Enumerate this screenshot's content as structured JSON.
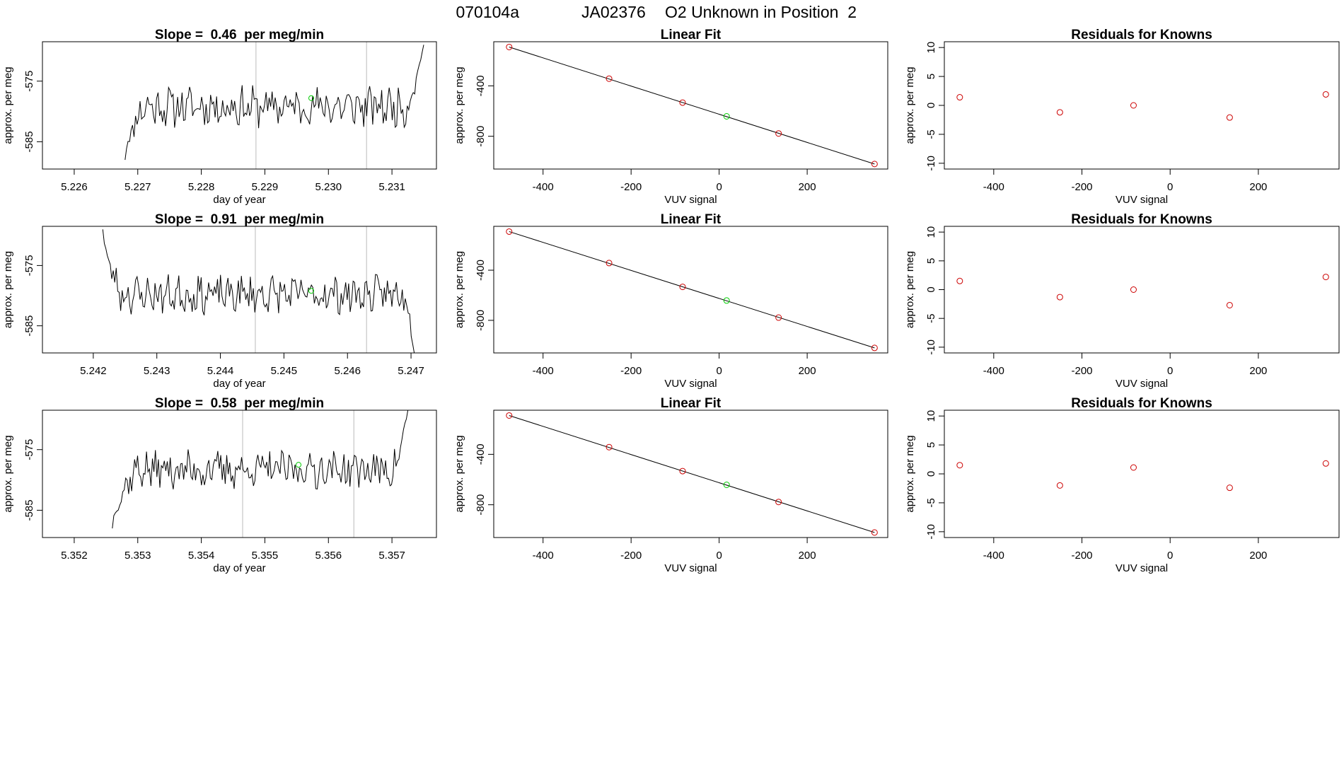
{
  "figure": {
    "title_parts": [
      "070104a",
      "JA02376",
      "O2 Unknown in Position  2"
    ]
  },
  "colors": {
    "known": "#cc0000",
    "unknown": "#00cc00",
    "line": "#000000",
    "vline": "#bbbbbb"
  },
  "chart_data": [
    {
      "type": "line",
      "row": 0,
      "title": "Slope =  0.46  per meg/min",
      "xlabel": "day of year",
      "ylabel": "approx. per meg",
      "xlim": [
        5.2255,
        5.2317
      ],
      "ylim": [
        -589.5,
        -568.5
      ],
      "xticks": [
        5.226,
        5.227,
        5.228,
        5.229,
        5.23,
        5.231
      ],
      "xtick_labels": [
        "5.226",
        "5.227",
        "5.228",
        "5.229",
        "5.230",
        "5.231"
      ],
      "yticks": [
        -585,
        -575
      ],
      "ytick_labels": [
        "-585",
        "-575"
      ],
      "vlines": [
        5.22886,
        5.2306
      ],
      "unknown_point": {
        "x": 5.22973,
        "y": -577.8
      },
      "series": {
        "x_start": 5.2268,
        "x_end": 5.2315,
        "n": 200,
        "mean": -579.2,
        "noise": 1.7,
        "seed": 11,
        "rise_start": -588,
        "rise_len": 0.06,
        "end_y": -569,
        "end_len": 0.06
      }
    },
    {
      "type": "scatter",
      "row": 0,
      "title": "Linear Fit",
      "xlabel": "VUV signal",
      "ylabel": "approx. per meg",
      "xlim": [
        -512,
        383
      ],
      "ylim": [
        -1060,
        -50
      ],
      "xticks": [
        -400,
        -200,
        0,
        200
      ],
      "xtick_labels": [
        "-400",
        "-200",
        "0",
        "200"
      ],
      "yticks": [
        -800,
        -400
      ],
      "ytick_labels": [
        "-800",
        "-400"
      ],
      "knowns": {
        "x": [
          -477,
          -250,
          -83,
          135,
          353
        ],
        "y": [
          -92,
          -343,
          -533,
          -778,
          -1020
        ]
      },
      "unknown": {
        "x": 17,
        "y": -642
      },
      "fit_line": {
        "x": [
          -477,
          353
        ],
        "y": [
          -92,
          -1020
        ]
      }
    },
    {
      "type": "scatter",
      "row": 0,
      "title": "Residuals for Knowns",
      "xlabel": "VUV signal",
      "ylabel": "approx. per meg",
      "xlim": [
        -512,
        383
      ],
      "ylim": [
        -11,
        11
      ],
      "xticks": [
        -400,
        -200,
        0,
        200
      ],
      "xtick_labels": [
        "-400",
        "-200",
        "0",
        "200"
      ],
      "yticks": [
        -10,
        -5,
        0,
        5,
        10
      ],
      "ytick_labels": [
        "-10",
        "-5",
        "0",
        "5",
        "10"
      ],
      "points": {
        "x": [
          -477,
          -250,
          -83,
          135,
          353
        ],
        "y": [
          1.4,
          -1.2,
          0.0,
          -2.1,
          1.9
        ]
      }
    },
    {
      "type": "line",
      "row": 1,
      "title": "Slope =  0.91  per meg/min",
      "xlabel": "day of year",
      "ylabel": "approx. per meg",
      "xlim": [
        5.2412,
        5.2474
      ],
      "ylim": [
        -589.5,
        -568.5
      ],
      "xticks": [
        5.242,
        5.243,
        5.244,
        5.245,
        5.246,
        5.247
      ],
      "xtick_labels": [
        "5.242",
        "5.243",
        "5.244",
        "5.245",
        "5.246",
        "5.247"
      ],
      "yticks": [
        -585,
        -575
      ],
      "ytick_labels": [
        "-585",
        "-575"
      ],
      "vlines": [
        5.24455,
        5.2463
      ],
      "unknown_point": {
        "x": 5.24543,
        "y": -579.2
      },
      "series": {
        "x_start": 5.24215,
        "x_end": 5.24705,
        "n": 210,
        "mean": -579.8,
        "noise": 1.6,
        "seed": 23,
        "rise_start": -569,
        "rise_len": 0.06,
        "end_y": -589.5,
        "end_len": 0.03
      }
    },
    {
      "type": "scatter",
      "row": 1,
      "title": "Linear Fit",
      "xlabel": "VUV signal",
      "ylabel": "approx. per meg",
      "xlim": [
        -512,
        383
      ],
      "ylim": [
        -1060,
        -50
      ],
      "xticks": [
        -400,
        -200,
        0,
        200
      ],
      "xtick_labels": [
        "-400",
        "-200",
        "0",
        "200"
      ],
      "yticks": [
        -800,
        -400
      ],
      "ytick_labels": [
        "-800",
        "-400"
      ],
      "knowns": {
        "x": [
          -477,
          -250,
          -83,
          135,
          353
        ],
        "y": [
          -92,
          -343,
          -533,
          -778,
          -1020
        ]
      },
      "unknown": {
        "x": 17,
        "y": -642
      },
      "fit_line": {
        "x": [
          -477,
          353
        ],
        "y": [
          -92,
          -1020
        ]
      }
    },
    {
      "type": "scatter",
      "row": 1,
      "title": "Residuals for Knowns",
      "xlabel": "VUV signal",
      "ylabel": "approx. per meg",
      "xlim": [
        -512,
        383
      ],
      "ylim": [
        -11,
        11
      ],
      "xticks": [
        -400,
        -200,
        0,
        200
      ],
      "xtick_labels": [
        "-400",
        "-200",
        "0",
        "200"
      ],
      "yticks": [
        -10,
        -5,
        0,
        5,
        10
      ],
      "ytick_labels": [
        "-10",
        "-5",
        "0",
        "5",
        "10"
      ],
      "points": {
        "x": [
          -477,
          -250,
          -83,
          135,
          353
        ],
        "y": [
          1.5,
          -1.3,
          0.0,
          -2.7,
          2.2
        ]
      }
    },
    {
      "type": "line",
      "row": 2,
      "title": "Slope =  0.58  per meg/min",
      "xlabel": "day of year",
      "ylabel": "approx. per meg",
      "xlim": [
        5.3515,
        5.3577
      ],
      "ylim": [
        -589.5,
        -568.5
      ],
      "xticks": [
        5.352,
        5.353,
        5.354,
        5.355,
        5.356,
        5.357
      ],
      "xtick_labels": [
        "5.352",
        "5.353",
        "5.354",
        "5.355",
        "5.356",
        "5.357"
      ],
      "yticks": [
        -585,
        -575
      ],
      "ytick_labels": [
        "-585",
        "-575"
      ],
      "vlines": [
        5.35465,
        5.3564
      ],
      "unknown_point": {
        "x": 5.35553,
        "y": -577.5
      },
      "series": {
        "x_start": 5.3526,
        "x_end": 5.35725,
        "n": 200,
        "mean": -578.3,
        "noise": 1.6,
        "seed": 37,
        "rise_start": -588,
        "rise_len": 0.08,
        "end_y": -568.5,
        "end_len": 0.05
      }
    },
    {
      "type": "scatter",
      "row": 2,
      "title": "Linear Fit",
      "xlabel": "VUV signal",
      "ylabel": "approx. per meg",
      "xlim": [
        -512,
        383
      ],
      "ylim": [
        -1060,
        -50
      ],
      "xticks": [
        -400,
        -200,
        0,
        200
      ],
      "xtick_labels": [
        "-400",
        "-200",
        "0",
        "200"
      ],
      "yticks": [
        -800,
        -400
      ],
      "ytick_labels": [
        "-800",
        "-400"
      ],
      "knowns": {
        "x": [
          -477,
          -250,
          -83,
          135,
          353
        ],
        "y": [
          -92,
          -343,
          -533,
          -778,
          -1020
        ]
      },
      "unknown": {
        "x": 17,
        "y": -642
      },
      "fit_line": {
        "x": [
          -477,
          353
        ],
        "y": [
          -92,
          -1020
        ]
      }
    },
    {
      "type": "scatter",
      "row": 2,
      "title": "Residuals for Knowns",
      "xlabel": "VUV signal",
      "ylabel": "approx. per meg",
      "xlim": [
        -512,
        383
      ],
      "ylim": [
        -11,
        11
      ],
      "xticks": [
        -400,
        -200,
        0,
        200
      ],
      "xtick_labels": [
        "-400",
        "-200",
        "0",
        "200"
      ],
      "yticks": [
        -10,
        -5,
        0,
        5,
        10
      ],
      "ytick_labels": [
        "-10",
        "-5",
        "0",
        "5",
        "10"
      ],
      "points": {
        "x": [
          -477,
          -250,
          -83,
          135,
          353
        ],
        "y": [
          1.5,
          -2.0,
          1.1,
          -2.4,
          1.8
        ]
      }
    }
  ]
}
